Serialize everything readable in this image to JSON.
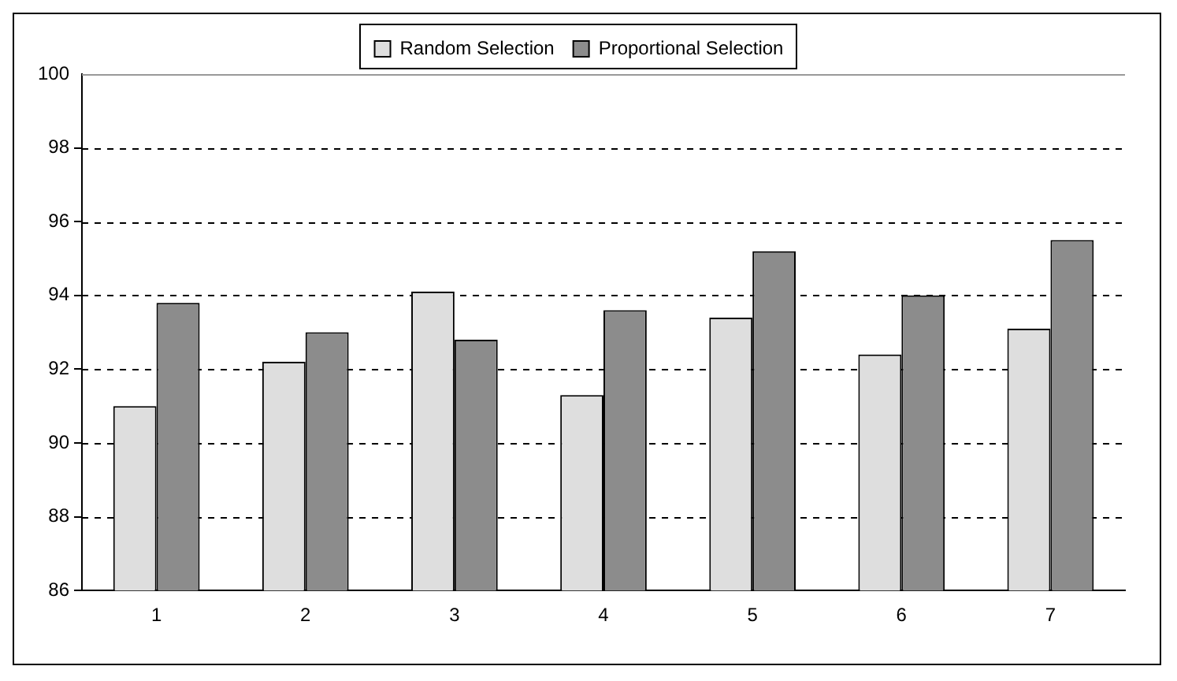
{
  "chart_data": {
    "type": "bar",
    "categories": [
      "1",
      "2",
      "3",
      "4",
      "5",
      "6",
      "7"
    ],
    "series": [
      {
        "name": "Random Selection",
        "color": "#dedede",
        "values": [
          91.0,
          92.2,
          94.1,
          91.3,
          93.4,
          92.4,
          93.1
        ]
      },
      {
        "name": "Proportional Selection",
        "color": "#8c8c8c",
        "values": [
          93.8,
          93.0,
          92.8,
          93.6,
          95.2,
          94.0,
          95.5
        ]
      }
    ],
    "ylim": [
      86,
      100
    ],
    "yticks": [
      86,
      88,
      90,
      92,
      94,
      96,
      98,
      100
    ],
    "grid": "y",
    "legend": "top"
  }
}
